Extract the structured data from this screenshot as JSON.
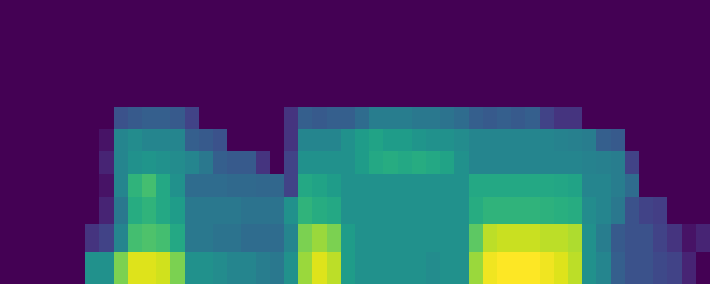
{
  "chart_data": {
    "type": "heatmap",
    "color": "viridis",
    "tick_labels": false,
    "grid": false,
    "xlim": [
      0,
      1000
    ],
    "ylim": [
      0,
      400
    ],
    "zlim": [
      0,
      1
    ],
    "x": [
      0,
      20,
      40,
      60,
      80,
      100,
      120,
      140,
      160,
      180,
      200,
      220,
      240,
      260,
      280,
      300,
      320,
      340,
      360,
      380,
      400,
      420,
      440,
      460,
      480,
      500,
      520,
      540,
      560,
      580,
      600,
      620,
      640,
      660,
      680,
      700,
      720,
      740,
      760,
      780,
      800,
      820,
      840,
      860,
      880,
      900,
      920,
      940,
      960,
      980,
      1000
    ],
    "y": [
      0,
      45,
      85,
      122,
      155,
      187,
      218,
      250,
      400
    ],
    "z": [
      [
        0,
        0,
        0,
        0,
        0,
        0,
        0.5,
        0.5,
        0.8,
        0.95,
        0.95,
        0.93,
        0.8,
        0.5,
        0.5,
        0.48,
        0.45,
        0.45,
        0.42,
        0.4,
        0.5,
        0.85,
        0.95,
        0.9,
        0.55,
        0.5,
        0.5,
        0.5,
        0.5,
        0.5,
        0.48,
        0.5,
        0.5,
        0.85,
        0.98,
        1,
        1,
        1,
        0.98,
        0.95,
        0.9,
        0.5,
        0.45,
        0.3,
        0.25,
        0.25,
        0.22,
        0.2,
        0.1,
        0
      ],
      [
        0,
        0,
        0,
        0,
        0,
        0,
        0.15,
        0.2,
        0.45,
        0.7,
        0.72,
        0.7,
        0.6,
        0.4,
        0.4,
        0.38,
        0.38,
        0.35,
        0.35,
        0.35,
        0.45,
        0.8,
        0.85,
        0.8,
        0.55,
        0.5,
        0.5,
        0.5,
        0.5,
        0.5,
        0.5,
        0.5,
        0.5,
        0.75,
        0.9,
        0.92,
        0.92,
        0.92,
        0.9,
        0.9,
        0.88,
        0.5,
        0.42,
        0.28,
        0.25,
        0.25,
        0.2,
        0.15,
        0.05,
        0.1
      ],
      [
        0,
        0,
        0,
        0,
        0,
        0,
        0,
        0.1,
        0.4,
        0.62,
        0.65,
        0.6,
        0.55,
        0.4,
        0.4,
        0.4,
        0.4,
        0.38,
        0.38,
        0.38,
        0.5,
        0.65,
        0.62,
        0.6,
        0.5,
        0.5,
        0.5,
        0.5,
        0.5,
        0.5,
        0.5,
        0.5,
        0.5,
        0.62,
        0.65,
        0.65,
        0.65,
        0.65,
        0.64,
        0.63,
        0.62,
        0.48,
        0.45,
        0.4,
        0.25,
        0.2,
        0.18,
        0,
        0,
        0
      ],
      [
        0,
        0,
        0,
        0,
        0,
        0,
        0,
        0.05,
        0.45,
        0.65,
        0.7,
        0.6,
        0.5,
        0.35,
        0.35,
        0.35,
        0.34,
        0.34,
        0.33,
        0.33,
        0.2,
        0.6,
        0.58,
        0.55,
        0.5,
        0.5,
        0.5,
        0.5,
        0.5,
        0.5,
        0.5,
        0.5,
        0.5,
        0.6,
        0.6,
        0.6,
        0.6,
        0.6,
        0.6,
        0.59,
        0.58,
        0.45,
        0.45,
        0.42,
        0.35,
        0,
        0,
        0,
        0,
        0
      ],
      [
        0,
        0,
        0,
        0,
        0,
        0,
        0,
        0.1,
        0.45,
        0.5,
        0.52,
        0.5,
        0.48,
        0.45,
        0.4,
        0.3,
        0.28,
        0.28,
        0.15,
        0,
        0.2,
        0.5,
        0.5,
        0.5,
        0.5,
        0.55,
        0.6,
        0.62,
        0.6,
        0.62,
        0.6,
        0.58,
        0.5,
        0.45,
        0.45,
        0.45,
        0.45,
        0.45,
        0.45,
        0.45,
        0.45,
        0.44,
        0.43,
        0.42,
        0.2,
        0,
        0,
        0,
        0,
        0
      ],
      [
        0,
        0,
        0,
        0,
        0,
        0,
        0,
        0.05,
        0.45,
        0.48,
        0.45,
        0.45,
        0.45,
        0.3,
        0.28,
        0.25,
        0,
        0,
        0,
        0,
        0.15,
        0.45,
        0.45,
        0.45,
        0.5,
        0.55,
        0.58,
        0.55,
        0.55,
        0.52,
        0.5,
        0.5,
        0.48,
        0.45,
        0.45,
        0.45,
        0.45,
        0.45,
        0.45,
        0.44,
        0.43,
        0.42,
        0.3,
        0.28,
        0,
        0,
        0,
        0,
        0,
        0
      ],
      [
        0,
        0,
        0,
        0,
        0,
        0,
        0,
        0,
        0.25,
        0.28,
        0.3,
        0.3,
        0.28,
        0.2,
        0,
        0,
        0,
        0,
        0,
        0,
        0.15,
        0.3,
        0.28,
        0.3,
        0.3,
        0.35,
        0.42,
        0.42,
        0.42,
        0.4,
        0.4,
        0.38,
        0.35,
        0.3,
        0.28,
        0.3,
        0.28,
        0.3,
        0.2,
        0.15,
        0.15,
        0,
        0,
        0,
        0,
        0,
        0,
        0,
        0,
        0
      ],
      [
        0,
        0,
        0,
        0,
        0,
        0,
        0,
        0,
        0,
        0,
        0,
        0,
        0,
        0,
        0,
        0,
        0,
        0,
        0,
        0,
        0,
        0,
        0,
        0,
        0,
        0,
        0,
        0,
        0,
        0,
        0,
        0,
        0,
        0,
        0,
        0,
        0,
        0,
        0,
        0,
        0,
        0,
        0,
        0,
        0,
        0,
        0,
        0,
        0,
        0
      ]
    ]
  }
}
